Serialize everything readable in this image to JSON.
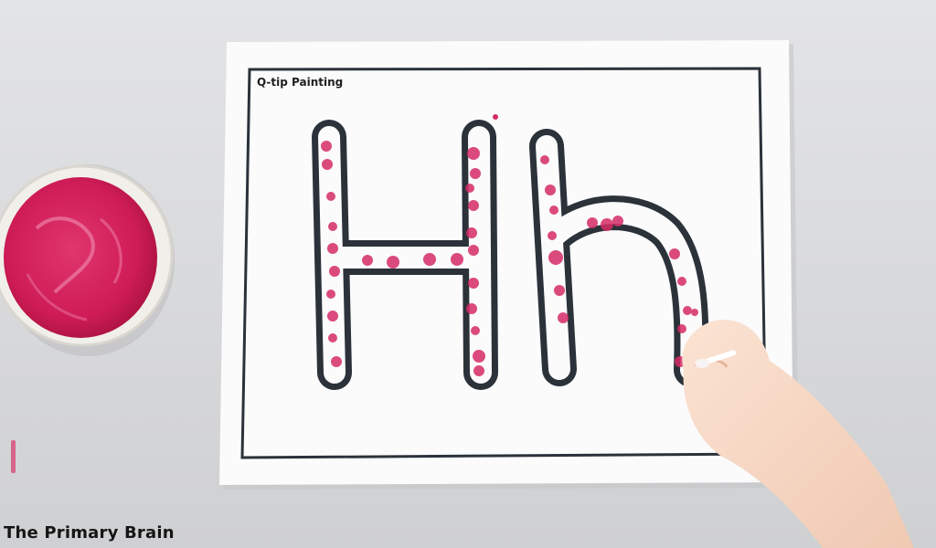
{
  "worksheet": {
    "title": "Q-tip Painting",
    "letters": "Hh"
  },
  "watermark": "The Primary Brain",
  "colors": {
    "table": "#dcdddf",
    "paper": "#fbfbfc",
    "outline": "#2b323a",
    "paint": "#d41e5a",
    "cup": "#f1efe9"
  }
}
